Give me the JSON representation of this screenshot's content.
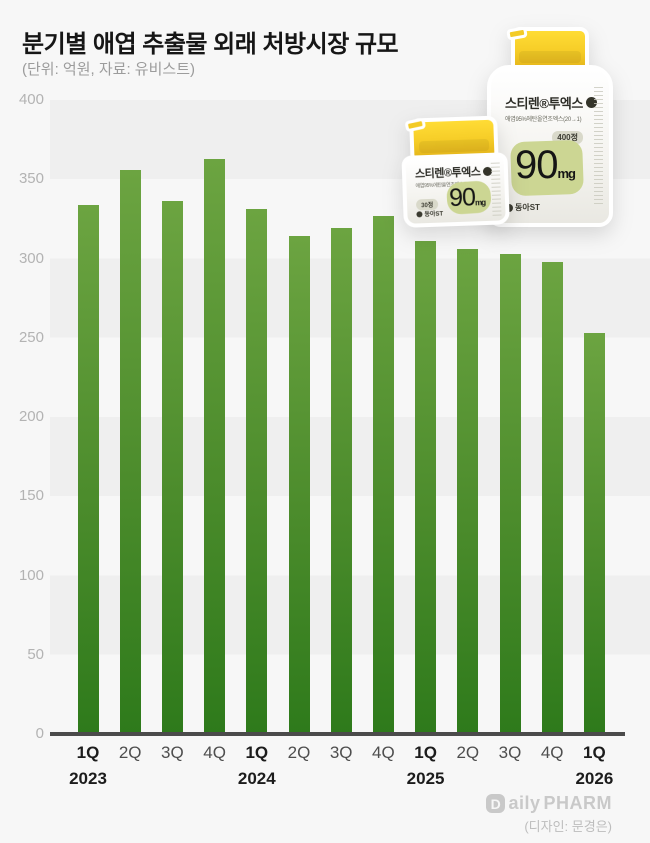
{
  "page": {
    "title": "분기별 애엽 추출물 외래 처방시장 규모",
    "subtitle": "(단위: 억원, 자료: 유비스트)",
    "footer_logo_mark": "D",
    "footer_logo_text1": "aily",
    "footer_logo_text2": "PHARM",
    "footer_credit": "(디자인: 문경은)"
  },
  "colors": {
    "background": "#f7f7f7",
    "stripe": "#efefef",
    "bar_top": "#6ca441",
    "bar_bottom": "#2e7a1b",
    "axis": "#4b4b4b",
    "cap_yellow": "#f6cd27",
    "blob_green": "#ccd693"
  },
  "chart_data": {
    "type": "bar",
    "title": "분기별 애엽 추출물 외래 처방시장 규모",
    "unit": "억원",
    "source": "유비스트",
    "categories": [
      "1Q",
      "2Q",
      "3Q",
      "4Q",
      "1Q",
      "2Q",
      "3Q",
      "4Q",
      "1Q",
      "2Q",
      "3Q",
      "4Q",
      "1Q"
    ],
    "year_marks": [
      {
        "index": 0,
        "label": "2023"
      },
      {
        "index": 4,
        "label": "2024"
      },
      {
        "index": 8,
        "label": "2025"
      },
      {
        "index": 12,
        "label": "2026"
      }
    ],
    "values": [
      334,
      356,
      336,
      363,
      331,
      314,
      319,
      327,
      311,
      306,
      303,
      298,
      253
    ],
    "ylim": [
      0,
      400
    ],
    "yticks": [
      400,
      350,
      300,
      250,
      200,
      150,
      100,
      50,
      0
    ],
    "grid": "alternating horizontal stripes",
    "legend": "none"
  },
  "product": {
    "small_bottle": {
      "brand": "스티렌®투엑스",
      "ingredient": "애엽95%에탄올연조엑스(20→1)",
      "count": "30정",
      "dose": "90",
      "dose_unit": "mg",
      "company": "동아ST"
    },
    "large_bottle": {
      "brand": "스티렌®투엑스",
      "ingredient": "애엽95%에탄올연조엑스(20→1)",
      "count": "400정",
      "dose": "90",
      "dose_unit": "mg",
      "company": "동아ST"
    }
  }
}
